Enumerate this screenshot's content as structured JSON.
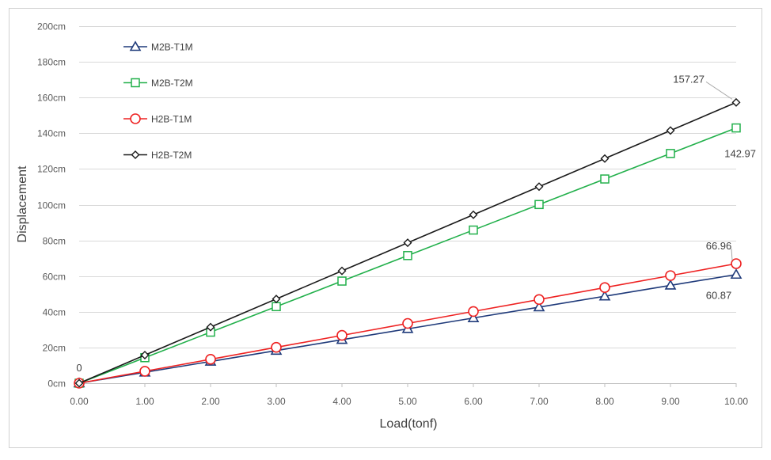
{
  "chart_data": {
    "type": "line",
    "title": "",
    "xlabel": "Load(tonf)",
    "ylabel": "Displacement",
    "x": [
      0,
      1,
      2,
      3,
      4,
      5,
      6,
      7,
      8,
      9,
      10
    ],
    "x_tick_labels": [
      "0.00",
      "1.00",
      "2.00",
      "3.00",
      "4.00",
      "5.00",
      "6.00",
      "7.00",
      "8.00",
      "9.00",
      "10.00"
    ],
    "y_ticks": [
      0,
      20,
      40,
      60,
      80,
      100,
      120,
      140,
      160,
      180,
      200
    ],
    "y_tick_labels": [
      "0cm",
      "20cm",
      "40cm",
      "60cm",
      "80cm",
      "100cm",
      "120cm",
      "140cm",
      "160cm",
      "180cm",
      "200cm"
    ],
    "xlim": [
      0,
      10
    ],
    "ylim": [
      0,
      200
    ],
    "grid": "horizontal",
    "legend_position": "top-left",
    "series": [
      {
        "name": "M2B-T1M",
        "marker": "triangle",
        "color": "#1f3a7a",
        "values": [
          0,
          6.09,
          12.17,
          18.26,
          24.35,
          30.44,
          36.52,
          42.61,
          48.7,
          54.78,
          60.87
        ]
      },
      {
        "name": "M2B-T2M",
        "marker": "square",
        "color": "#22b04b",
        "values": [
          0,
          14.3,
          28.59,
          42.89,
          57.19,
          71.49,
          85.78,
          100.08,
          114.38,
          128.67,
          142.97
        ]
      },
      {
        "name": "H2B-T1M",
        "marker": "circle",
        "color": "#ee2222",
        "values": [
          0,
          6.7,
          13.39,
          20.09,
          26.78,
          33.48,
          40.18,
          46.87,
          53.57,
          60.26,
          66.96
        ]
      },
      {
        "name": "H2B-T2M",
        "marker": "diamond",
        "color": "#1a1a1a",
        "values": [
          0,
          15.73,
          31.45,
          47.18,
          62.91,
          78.64,
          94.36,
          110.09,
          125.82,
          141.54,
          157.27
        ]
      }
    ],
    "annotations": [
      {
        "text": "0",
        "series": "H2B-T2M",
        "x": 0,
        "y": 0
      },
      {
        "text": "157.27",
        "series": "H2B-T2M",
        "x": 10,
        "y": 157.27
      },
      {
        "text": "142.97",
        "series": "M2B-T2M",
        "x": 10,
        "y": 142.97
      },
      {
        "text": "66.96",
        "series": "H2B-T1M",
        "x": 10,
        "y": 66.96
      },
      {
        "text": "60.87",
        "series": "M2B-T1M",
        "x": 10,
        "y": 60.87
      }
    ]
  }
}
